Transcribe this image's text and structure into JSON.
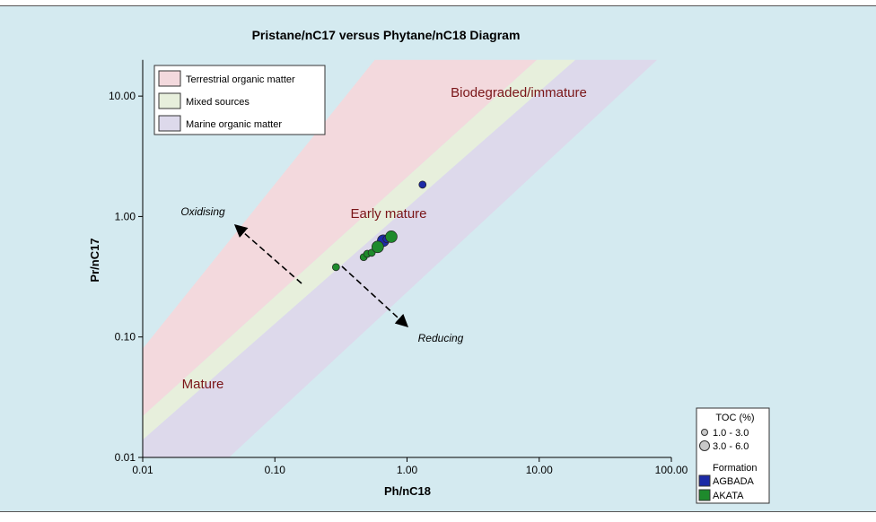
{
  "chart_data": {
    "type": "scatter",
    "title": "Pristane/nC17 versus Phytane/nC18 Diagram",
    "x_label": "Ph/nC18",
    "y_label": "Pr/nC17",
    "log_x": true,
    "log_y": true,
    "xlim": [
      0.01,
      100
    ],
    "ylim": [
      0.01,
      20
    ],
    "xticks": [
      {
        "value": 0.01,
        "label": "0.01"
      },
      {
        "value": 0.1,
        "label": "0.10"
      },
      {
        "value": 1,
        "label": "1.00"
      },
      {
        "value": 10,
        "label": "10.00"
      },
      {
        "value": 100,
        "label": "100.00"
      }
    ],
    "yticks": [
      {
        "value": 0.01,
        "label": "0.01"
      },
      {
        "value": 0.1,
        "label": "0.10"
      },
      {
        "value": 1,
        "label": "1.00"
      },
      {
        "value": 10,
        "label": "10.00"
      }
    ],
    "regions": [
      {
        "name": "Terrestrial organic matter",
        "color": "#f3d9dd",
        "x": [
          0.01,
          0.57,
          9.6,
          0.01
        ],
        "y": [
          0.08,
          20,
          20,
          0.022
        ]
      },
      {
        "name": "Mixed sources",
        "color": "#e7efdc",
        "x": [
          0.01,
          9.6,
          18.8,
          0.01
        ],
        "y": [
          0.022,
          20,
          20,
          0.014
        ]
      },
      {
        "name": "Marine organic matter",
        "color": "#ddd9eb",
        "x": [
          0.01,
          18.8,
          78,
          0.045,
          0.01
        ],
        "y": [
          0.014,
          20,
          20,
          0.01,
          0.01
        ]
      }
    ],
    "annotations": [
      "Biodegraded/immature",
      "Early mature",
      "Mature",
      "Oxidising",
      "Reducing"
    ],
    "size_legend": {
      "title": "TOC (%)",
      "labels": [
        "1.0 - 3.0",
        "3.0 - 6.0"
      ]
    },
    "color_legend_title": "Formation",
    "series": [
      {
        "name": "AGBADA",
        "color": "#1c2aa6",
        "x": [
          1.31,
          0.66,
          0.7
        ],
        "y": [
          1.84,
          0.63,
          0.65
        ],
        "toc": [
          "1.0 - 3.0",
          "3.0 - 6.0",
          "1.0 - 3.0"
        ]
      },
      {
        "name": "AKATA",
        "color": "#1e8a2c",
        "x": [
          0.29,
          0.47,
          0.5,
          0.54,
          0.59,
          0.6,
          0.76
        ],
        "y": [
          0.38,
          0.46,
          0.49,
          0.5,
          0.54,
          0.56,
          0.68
        ],
        "toc": [
          "1.0 - 3.0",
          "1.0 - 3.0",
          "1.0 - 3.0",
          "1.0 - 3.0",
          "1.0 - 3.0",
          "3.0 - 6.0",
          "3.0 - 6.0"
        ]
      }
    ]
  }
}
